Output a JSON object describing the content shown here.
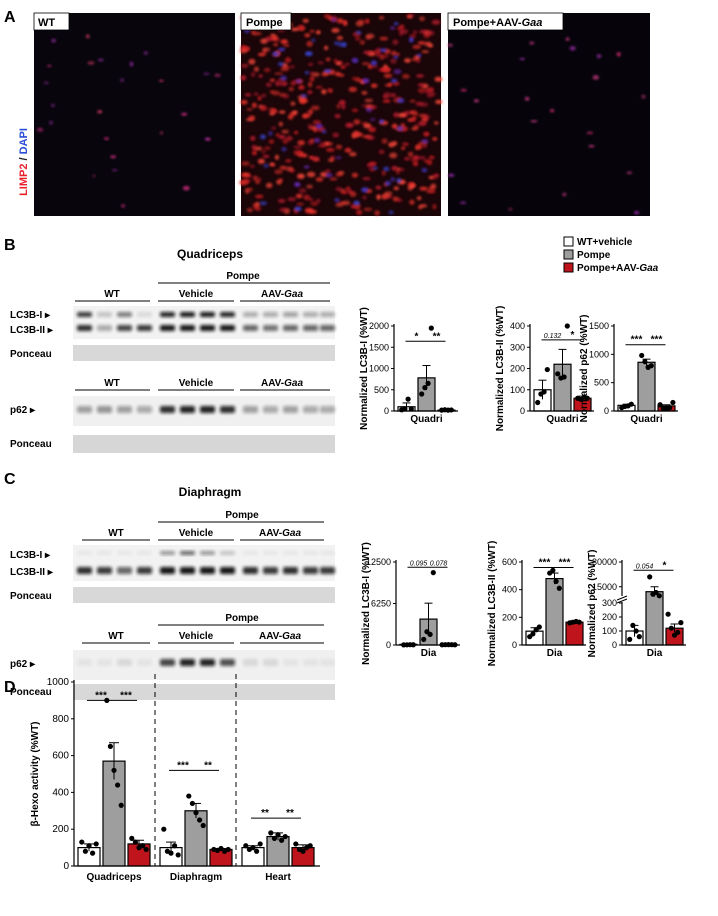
{
  "colors": {
    "wt": "#ffffff",
    "pompe": "#9e9e9e",
    "aav": "#c0141c",
    "limp2": "#e8202a",
    "dapi": "#2a4bd8"
  },
  "panelA": {
    "letter": "A",
    "ylabel_limp2": "LIMP2",
    "ylabel_sep": " / ",
    "ylabel_dapi": "DAPI",
    "panels": [
      {
        "label": "WT",
        "label_italic": ""
      },
      {
        "label": "Pompe",
        "label_italic": ""
      },
      {
        "label": "Pompe+AAV-",
        "label_italic": "Gaa"
      }
    ]
  },
  "legend": [
    {
      "label": "WT+vehicle",
      "label_italic": "",
      "key": "wt"
    },
    {
      "label": "Pompe",
      "label_italic": "",
      "key": "pompe"
    },
    {
      "label": "Pompe+AAV-",
      "label_italic": "Gaa",
      "key": "aav"
    }
  ],
  "panelB": {
    "letter": "B",
    "title": "Quadriceps",
    "blot1": {
      "pompe": "Pompe",
      "wt": "WT",
      "vehicle": "Vehicle",
      "aav": "AAV-",
      "aav_italic": "Gaa",
      "row1": "LC3B-I",
      "row2": "LC3B-II",
      "ponceau": "Ponceau"
    },
    "blot2": {
      "wt": "WT",
      "vehicle": "Vehicle",
      "aav": "AAV-",
      "aav_italic": "Gaa",
      "row1": "p62",
      "ponceau": "Ponceau"
    }
  },
  "panelC": {
    "letter": "C",
    "title": "Diaphragm",
    "blot1": {
      "pompe": "Pompe",
      "wt": "WT",
      "vehicle": "Vehicle",
      "aav": "AAV-",
      "aav_italic": "Gaa",
      "row1": "LC3B-I",
      "row2": "LC3B-II",
      "ponceau": "Ponceau"
    },
    "blot2": {
      "pompe": "Pompe",
      "wt": "WT",
      "vehicle": "Vehicle",
      "aav": "AAV-",
      "aav_italic": "Gaa",
      "row1": "p62",
      "ponceau": "Ponceau"
    }
  },
  "panelD": {
    "letter": "D"
  },
  "chart_data": [
    {
      "id": "b1",
      "type": "bar",
      "ylabel": "Normalized LC3B-I (%WT)",
      "xlabel": "Quadri",
      "yticks": [
        0,
        500,
        1000,
        1500,
        2000
      ],
      "ylim": [
        0,
        2000
      ],
      "series": [
        {
          "name": "WT+vehicle",
          "value": 100,
          "sem": 90,
          "points": [
            30,
            50,
            280,
            50
          ]
        },
        {
          "name": "Pompe",
          "value": 780,
          "sem": 290,
          "points": [
            400,
            550,
            650,
            1950
          ]
        },
        {
          "name": "Pompe+AAV-Gaa",
          "value": 20,
          "sem": 10,
          "points": [
            20,
            30,
            20,
            25
          ]
        }
      ],
      "sig": [
        {
          "from": 0,
          "to": 1,
          "label": "*",
          "y": 1640
        },
        {
          "from": 1,
          "to": 2,
          "label": "**",
          "y": 1640
        }
      ]
    },
    {
      "id": "b2",
      "type": "bar",
      "ylabel": "Normalized LC3B-II (%WT)",
      "xlabel": "Quadri",
      "yticks": [
        0,
        100,
        200,
        300,
        400
      ],
      "ylim": [
        0,
        400
      ],
      "series": [
        {
          "name": "WT+vehicle",
          "value": 100,
          "sem": 45,
          "points": [
            40,
            80,
            90,
            195
          ]
        },
        {
          "name": "Pompe",
          "value": 220,
          "sem": 70,
          "points": [
            175,
            155,
            160,
            420
          ]
        },
        {
          "name": "Pompe+AAV-Gaa",
          "value": 60,
          "sem": 10,
          "points": [
            60,
            55,
            65,
            60
          ]
        }
      ],
      "sig": [
        {
          "from": 0,
          "to": 1,
          "label": "0.132",
          "y": 335,
          "italic": true
        },
        {
          "from": 1,
          "to": 2,
          "label": "*",
          "y": 335
        }
      ]
    },
    {
      "id": "b3",
      "type": "bar",
      "ylabel": "Normalized p62 (%WT)",
      "xlabel": "Quadri",
      "yticks": [
        0,
        500,
        1000,
        1500
      ],
      "ylim": [
        0,
        1500
      ],
      "series": [
        {
          "name": "WT+vehicle",
          "value": 100,
          "sem": 20,
          "points": [
            60,
            80,
            90,
            120
          ]
        },
        {
          "name": "Pompe",
          "value": 860,
          "sem": 55,
          "points": [
            980,
            870,
            770,
            800
          ]
        },
        {
          "name": "Pompe+AAV-Gaa",
          "value": 90,
          "sem": 20,
          "points": [
            110,
            50,
            40,
            60,
            150
          ]
        }
      ],
      "sig": [
        {
          "from": 0,
          "to": 1,
          "label": "***",
          "y": 1170
        },
        {
          "from": 1,
          "to": 2,
          "label": "***",
          "y": 1170
        }
      ]
    },
    {
      "id": "c1",
      "type": "bar",
      "ylabel": "Normalized LC3B-I (%WT)",
      "xlabel": "Dia",
      "yticks": [
        0,
        6250,
        12500
      ],
      "ylim": [
        0,
        12500
      ],
      "series": [
        {
          "name": "WT+vehicle",
          "value": 100,
          "sem": 30,
          "points": [
            20,
            30,
            50,
            40
          ]
        },
        {
          "name": "Pompe",
          "value": 3900,
          "sem": 2400,
          "points": [
            850,
            2000,
            1600,
            10900
          ]
        },
        {
          "name": "Pompe+AAV-Gaa",
          "value": 50,
          "sem": 10,
          "points": [
            40,
            50,
            60,
            50,
            40
          ]
        }
      ],
      "sig": [
        {
          "from": 0,
          "to": 1,
          "label": "0.095",
          "y": 11700,
          "italic": true
        },
        {
          "from": 1,
          "to": 2,
          "label": "0.078",
          "y": 11700,
          "italic": true
        }
      ]
    },
    {
      "id": "c2",
      "type": "bar",
      "ylabel": "Normalized LC3B-II (%WT)",
      "xlabel": "Dia",
      "yticks": [
        0,
        200,
        400,
        600
      ],
      "ylim": [
        0,
        600
      ],
      "series": [
        {
          "name": "WT+vehicle",
          "value": 100,
          "sem": 25,
          "points": [
            60,
            80,
            110,
            130
          ]
        },
        {
          "name": "Pompe",
          "value": 480,
          "sem": 40,
          "points": [
            520,
            540,
            460,
            410
          ]
        },
        {
          "name": "Pompe+AAV-Gaa",
          "value": 165,
          "sem": 10,
          "points": [
            160,
            165,
            170,
            165
          ]
        }
      ],
      "sig": [
        {
          "from": 0,
          "to": 1,
          "label": "***",
          "y": 560
        },
        {
          "from": 1,
          "to": 2,
          "label": "***",
          "y": 560
        }
      ]
    },
    {
      "id": "c3",
      "type": "bar",
      "ylabel": "Normalized p62 (%WT)",
      "xlabel": "Dia",
      "yticks": [
        0,
        100,
        200,
        300,
        15000,
        30000
      ],
      "ylim": [
        0,
        30000
      ],
      "axis_break": [
        300,
        10000
      ],
      "series": [
        {
          "name": "WT+vehicle",
          "value": 100,
          "sem": 40,
          "points": [
            40,
            140,
            100,
            60
          ]
        },
        {
          "name": "Pompe",
          "value": 12000,
          "sem": 3000,
          "points": [
            21000,
            10500,
            11500,
            9500
          ]
        },
        {
          "name": "Pompe+AAV-Gaa",
          "value": 120,
          "sem": 30,
          "points": [
            220,
            120,
            70,
            90,
            160
          ]
        }
      ],
      "sig": [
        {
          "from": 0,
          "to": 1,
          "label": "0.054",
          "y": 25000,
          "italic": true
        },
        {
          "from": 1,
          "to": 2,
          "label": "*",
          "y": 25000
        }
      ]
    },
    {
      "id": "d1",
      "type": "bar",
      "ylabel": "β-Hexo activity (%WT)",
      "yticks": [
        0,
        200,
        400,
        600,
        800,
        1000
      ],
      "ylim": [
        0,
        1000
      ],
      "categories": [
        "Quadriceps",
        "Diaphragm",
        "Heart"
      ],
      "groups": [
        {
          "label": "Quadriceps",
          "bars": [
            {
              "name": "WT+vehicle",
              "value": 100,
              "sem": 20,
              "points": [
                130,
                80,
                110,
                70,
                120
              ]
            },
            {
              "name": "Pompe",
              "value": 570,
              "sem": 100,
              "points": [
                900,
                650,
                520,
                440,
                330
              ]
            },
            {
              "name": "Pompe+AAV-Gaa",
              "value": 120,
              "sem": 20,
              "points": [
                150,
                130,
                100,
                110,
                90
              ]
            }
          ],
          "sig": [
            {
              "from": 0,
              "to": 1,
              "label": "***",
              "y": 900
            },
            {
              "from": 1,
              "to": 2,
              "label": "***",
              "y": 900
            }
          ]
        },
        {
          "label": "Diaphragm",
          "bars": [
            {
              "name": "WT+vehicle",
              "value": 100,
              "sem": 30,
              "points": [
                200,
                80,
                70,
                110,
                60
              ]
            },
            {
              "name": "Pompe",
              "value": 300,
              "sem": 40,
              "points": [
                380,
                340,
                290,
                250,
                220
              ]
            },
            {
              "name": "Pompe+AAV-Gaa",
              "value": 90,
              "sem": 5,
              "points": [
                90,
                85,
                95,
                80,
                90
              ]
            }
          ],
          "sig": [
            {
              "from": 0,
              "to": 1,
              "label": "***",
              "y": 520
            },
            {
              "from": 1,
              "to": 2,
              "label": "**",
              "y": 520
            }
          ]
        },
        {
          "label": "Heart",
          "bars": [
            {
              "name": "WT+vehicle",
              "value": 100,
              "sem": 10,
              "points": [
                110,
                90,
                100,
                80,
                120
              ]
            },
            {
              "name": "Pompe",
              "value": 160,
              "sem": 20,
              "points": [
                180,
                150,
                170,
                140,
                160
              ]
            },
            {
              "name": "Pompe+AAV-Gaa",
              "value": 100,
              "sem": 15,
              "points": [
                120,
                90,
                80,
                100,
                110
              ]
            }
          ],
          "sig": [
            {
              "from": 0,
              "to": 1,
              "label": "**",
              "y": 260
            },
            {
              "from": 1,
              "to": 2,
              "label": "**",
              "y": 260
            }
          ]
        }
      ]
    }
  ]
}
